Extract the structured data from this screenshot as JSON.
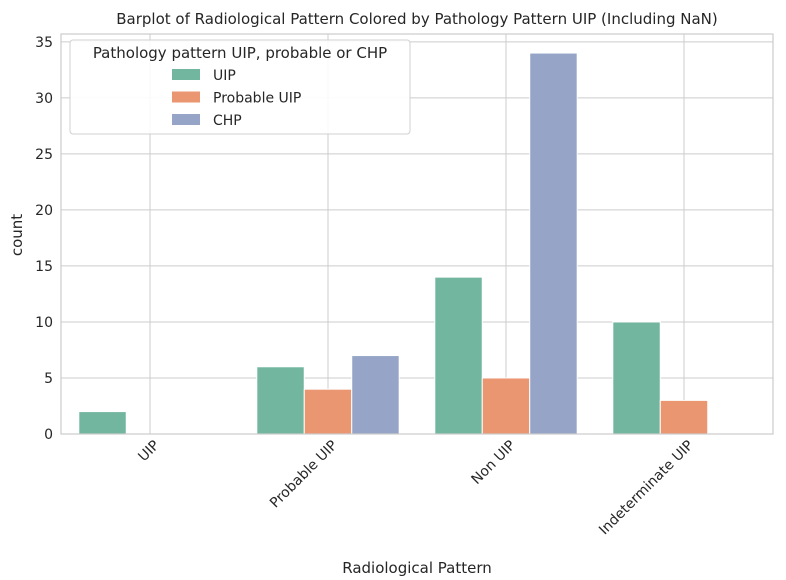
{
  "chart_data": {
    "type": "bar",
    "title": "Barplot of Radiological Pattern Colored by Pathology Pattern UIP (Including NaN)",
    "xlabel": "Radiological Pattern",
    "ylabel": "count",
    "categories": [
      "UIP",
      "Probable UIP",
      "Non UIP",
      "Indeterminate UIP"
    ],
    "series": [
      {
        "name": "UIP",
        "color": "#72b6a0",
        "values": [
          2,
          6,
          14,
          10
        ]
      },
      {
        "name": "Probable UIP",
        "color": "#ea9670",
        "values": [
          0,
          4,
          5,
          3
        ]
      },
      {
        "name": "CHP",
        "color": "#96a5c7",
        "values": [
          0,
          7,
          34,
          0
        ]
      }
    ],
    "ylim": [
      0,
      35.7
    ],
    "yticks": [
      "0",
      "5",
      "10",
      "15",
      "20",
      "25",
      "30",
      "35"
    ],
    "grid": true,
    "legend": {
      "title": "Pathology pattern UIP, probable or CHP",
      "placement": "upper-left"
    }
  }
}
